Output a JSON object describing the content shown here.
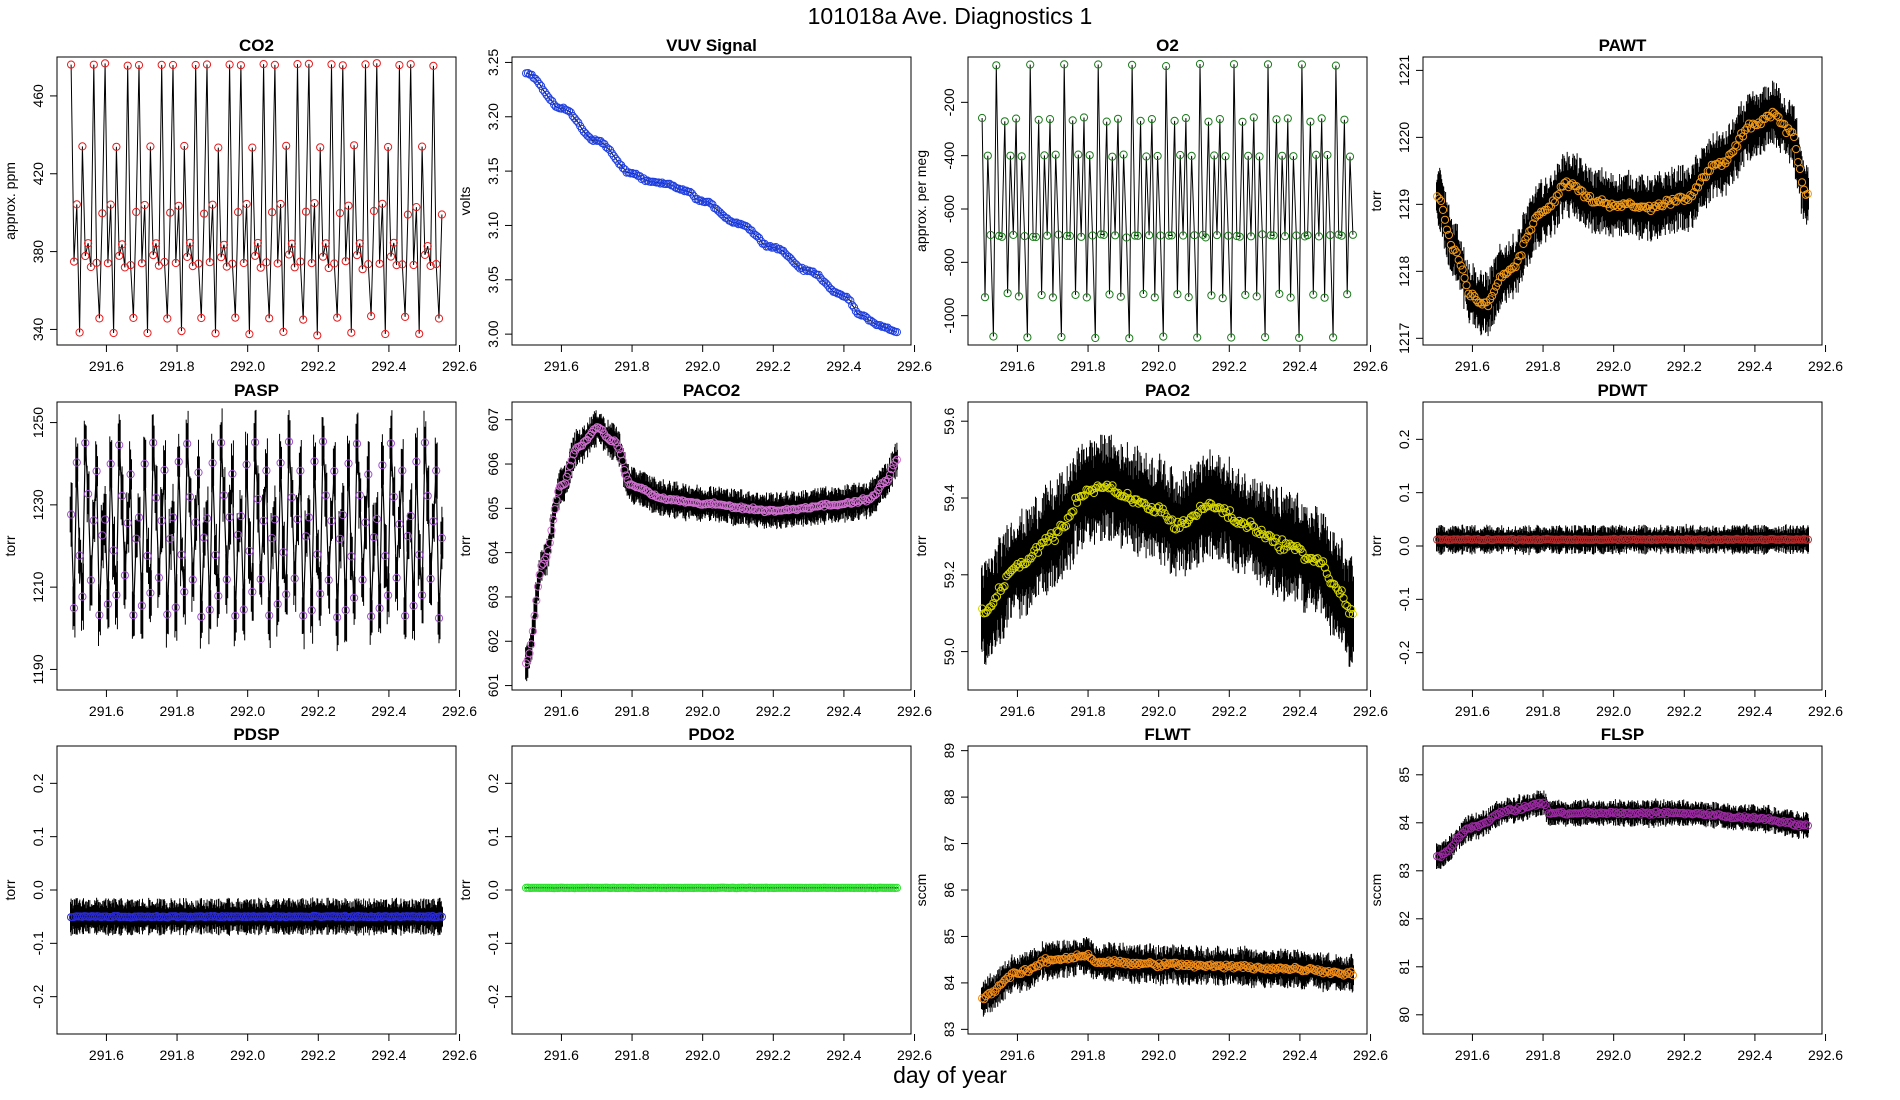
{
  "header": {
    "title": "101018a   Ave. Diagnostics 1"
  },
  "footer": {
    "xlabel": "day of year"
  },
  "chart_data": [
    {
      "type": "scatter",
      "title": "CO2",
      "ylabel": "approx. ppm",
      "color": "#e41a1c",
      "xlim": [
        291.46,
        292.59
      ],
      "ylim": [
        332,
        480
      ],
      "xticks": [
        291.6,
        291.8,
        292.0,
        292.2,
        292.4,
        292.6
      ],
      "xtick_labels": [
        "291.6",
        "291.8",
        "292.0",
        "292.2",
        "292.4",
        "292.6"
      ],
      "yticks": [
        340,
        380,
        420,
        460
      ],
      "ytick_labels": [
        "340",
        "380",
        "420",
        "460"
      ],
      "pattern": "cycle",
      "cycle_values": [
        476,
        374,
        404,
        338,
        434,
        378,
        384,
        372,
        476,
        374,
        346,
        400
      ],
      "pts_per_cycle": 12,
      "n_cycles": 11,
      "x_start": 291.5,
      "x_end": 292.55,
      "spread": 1.5,
      "marker": "o"
    },
    {
      "type": "scatter",
      "title": "VUV Signal",
      "ylabel": "volts",
      "color": "#1f3fe0",
      "xlim": [
        291.46,
        292.59
      ],
      "ylim": [
        2.99,
        3.255
      ],
      "xticks": [
        291.6,
        291.8,
        292.0,
        292.2,
        292.4,
        292.6
      ],
      "xtick_labels": [
        "291.6",
        "291.8",
        "292.0",
        "292.2",
        "292.4",
        "292.6"
      ],
      "yticks": [
        3.0,
        3.05,
        3.1,
        3.15,
        3.2,
        3.25
      ],
      "ytick_labels": [
        "3.00",
        "3.05",
        "3.10",
        "3.15",
        "3.20",
        "3.25"
      ],
      "pattern": "curve",
      "x": [
        291.5,
        291.6,
        291.7,
        291.8,
        291.85,
        291.9,
        291.95,
        292.0,
        292.1,
        292.2,
        292.3,
        292.4,
        292.45,
        292.5,
        292.55
      ],
      "y": [
        3.24,
        3.208,
        3.178,
        3.148,
        3.14,
        3.138,
        3.132,
        3.122,
        3.102,
        3.08,
        3.058,
        3.035,
        3.017,
        3.008,
        3.002
      ],
      "n_points": 200,
      "noise": 0.0015,
      "marker": "o"
    },
    {
      "type": "scatter",
      "title": "O2",
      "ylabel": "approx. per meg",
      "color": "#1a7a1a",
      "xlim": [
        291.46,
        292.59
      ],
      "ylim": [
        -1110,
        -30
      ],
      "xticks": [
        291.6,
        291.8,
        292.0,
        292.2,
        292.4,
        292.6
      ],
      "xtick_labels": [
        "291.6",
        "291.8",
        "292.0",
        "292.2",
        "292.4",
        "292.6"
      ],
      "yticks": [
        -1000,
        -800,
        -600,
        -400,
        -200
      ],
      "ytick_labels": [
        "-1000",
        "-800",
        "-600",
        "-400",
        "-200"
      ],
      "pattern": "cycle",
      "cycle_values": [
        -260,
        -930,
        -400,
        -700,
        -1080,
        -60,
        -700,
        -700,
        -270,
        -920,
        -400,
        -700
      ],
      "pts_per_cycle": 12,
      "n_cycles": 11,
      "x_start": 291.5,
      "x_end": 292.55,
      "spread": 8,
      "marker": "o"
    },
    {
      "type": "scatter",
      "title": "PAWT",
      "ylabel": "torr",
      "color": "#f29b18",
      "xlim": [
        291.46,
        292.59
      ],
      "ylim": [
        1216.9,
        1221.2
      ],
      "xticks": [
        291.6,
        291.8,
        292.0,
        292.2,
        292.4,
        292.6
      ],
      "xtick_labels": [
        "291.6",
        "291.8",
        "292.0",
        "292.2",
        "292.4",
        "292.6"
      ],
      "yticks": [
        1217,
        1218,
        1219,
        1220,
        1221
      ],
      "ytick_labels": [
        "1217",
        "1218",
        "1219",
        "1220",
        "1221"
      ],
      "pattern": "curve",
      "x": [
        291.5,
        291.55,
        291.6,
        291.63,
        291.7,
        291.8,
        291.87,
        291.95,
        292.0,
        292.1,
        292.2,
        292.3,
        292.4,
        292.45,
        292.5,
        292.55
      ],
      "y": [
        1219.1,
        1218.3,
        1217.6,
        1217.5,
        1218.0,
        1218.9,
        1219.3,
        1219.05,
        1219.0,
        1218.95,
        1219.1,
        1219.6,
        1220.2,
        1220.35,
        1220.1,
        1219.1
      ],
      "n_points": 190,
      "noise": 0.08,
      "band": 0.35,
      "marker": "o"
    },
    {
      "type": "scatter",
      "title": "PASP",
      "ylabel": "torr",
      "color": "#a050d0",
      "xlim": [
        291.46,
        292.59
      ],
      "ylim": [
        1185,
        1255
      ],
      "xticks": [
        291.6,
        291.8,
        292.0,
        292.2,
        292.4,
        292.6
      ],
      "xtick_labels": [
        "291.6",
        "291.8",
        "292.0",
        "292.2",
        "292.4",
        "292.6"
      ],
      "yticks": [
        1190,
        1210,
        1230,
        1250
      ],
      "ytick_labels": [
        "1190",
        "1210",
        "1230",
        "1250"
      ],
      "pattern": "cycle",
      "cycle_values": [
        1227,
        1205,
        1240,
        1218,
        1208,
        1245,
        1232,
        1212,
        1226,
        1238,
        1203,
        1222
      ],
      "pts_per_cycle": 12,
      "n_cycles": 11,
      "x_start": 291.5,
      "x_end": 292.55,
      "spread": 1.2,
      "band": 6,
      "marker": "o"
    },
    {
      "type": "scatter",
      "title": "PACO2",
      "ylabel": "torr",
      "color": "#d070d0",
      "xlim": [
        291.46,
        292.59
      ],
      "ylim": [
        600.9,
        607.4
      ],
      "xticks": [
        291.6,
        291.8,
        292.0,
        292.2,
        292.4,
        292.6
      ],
      "xtick_labels": [
        "291.6",
        "291.8",
        "292.0",
        "292.2",
        "292.4",
        "292.6"
      ],
      "yticks": [
        601,
        602,
        603,
        604,
        605,
        606,
        607
      ],
      "ytick_labels": [
        "601",
        "602",
        "603",
        "604",
        "605",
        "606",
        "607"
      ],
      "pattern": "curve",
      "x": [
        291.5,
        291.55,
        291.6,
        291.65,
        291.7,
        291.75,
        291.8,
        291.9,
        292.0,
        292.2,
        292.4,
        292.47,
        292.52,
        292.55
      ],
      "y": [
        601.5,
        603.8,
        605.5,
        606.4,
        606.8,
        606.5,
        605.5,
        605.2,
        605.1,
        604.95,
        605.1,
        605.2,
        605.6,
        606.1
      ],
      "n_points": 220,
      "noise": 0.05,
      "band": 0.3,
      "marker": "o"
    },
    {
      "type": "scatter",
      "title": "PAO2",
      "ylabel": "torr",
      "color": "#d8d800",
      "xlim": [
        291.46,
        292.59
      ],
      "ylim": [
        58.9,
        59.65
      ],
      "xticks": [
        291.6,
        291.8,
        292.0,
        292.2,
        292.4,
        292.6
      ],
      "xtick_labels": [
        "291.6",
        "291.8",
        "292.0",
        "292.2",
        "292.4",
        "292.6"
      ],
      "yticks": [
        59.0,
        59.2,
        59.4,
        59.6
      ],
      "ytick_labels": [
        "59.0",
        "59.2",
        "59.4",
        "59.6"
      ],
      "pattern": "curve",
      "x": [
        291.5,
        291.6,
        291.7,
        291.8,
        291.85,
        291.9,
        292.0,
        292.05,
        292.15,
        292.25,
        292.35,
        292.45,
        292.5,
        292.55
      ],
      "y": [
        59.1,
        59.22,
        59.3,
        59.42,
        59.43,
        59.4,
        59.37,
        59.33,
        59.38,
        59.33,
        59.28,
        59.24,
        59.17,
        59.1
      ],
      "n_points": 200,
      "noise": 0.02,
      "band": 0.1,
      "marker": "o"
    },
    {
      "type": "scatter",
      "title": "PDWT",
      "ylabel": "torr",
      "color": "#b02a2a",
      "xlim": [
        291.46,
        292.59
      ],
      "ylim": [
        -0.27,
        0.27
      ],
      "xticks": [
        291.6,
        291.8,
        292.0,
        292.2,
        292.4,
        292.6
      ],
      "xtick_labels": [
        "291.6",
        "291.8",
        "292.0",
        "292.2",
        "292.4",
        "292.6"
      ],
      "yticks": [
        -0.2,
        -0.1,
        0.0,
        0.1,
        0.2
      ],
      "ytick_labels": [
        "-0.2",
        "-0.1",
        "0.0",
        "0.1",
        "0.2"
      ],
      "pattern": "flat",
      "level": 0.012,
      "n_points": 200,
      "x_start": 291.5,
      "x_end": 292.55,
      "noise": 0.002,
      "band": 0.02,
      "marker": "o"
    },
    {
      "type": "scatter",
      "title": "PDSP",
      "ylabel": "torr",
      "color": "#2a2ad8",
      "xlim": [
        291.46,
        292.59
      ],
      "ylim": [
        -0.27,
        0.27
      ],
      "xticks": [
        291.6,
        291.8,
        292.0,
        292.2,
        292.4,
        292.6
      ],
      "xtick_labels": [
        "291.6",
        "291.8",
        "292.0",
        "292.2",
        "292.4",
        "292.6"
      ],
      "yticks": [
        -0.2,
        -0.1,
        0.0,
        0.1,
        0.2
      ],
      "ytick_labels": [
        "-0.2",
        "-0.1",
        "0.0",
        "0.1",
        "0.2"
      ],
      "pattern": "flat",
      "level": -0.05,
      "n_points": 200,
      "x_start": 291.5,
      "x_end": 292.55,
      "noise": 0.002,
      "band": 0.025,
      "marker": "o"
    },
    {
      "type": "scatter",
      "title": "PDO2",
      "ylabel": "torr",
      "color": "#30e030",
      "xlim": [
        291.46,
        292.59
      ],
      "ylim": [
        -0.27,
        0.27
      ],
      "xticks": [
        291.6,
        291.8,
        292.0,
        292.2,
        292.4,
        292.6
      ],
      "xtick_labels": [
        "291.6",
        "291.8",
        "292.0",
        "292.2",
        "292.4",
        "292.6"
      ],
      "yticks": [
        -0.2,
        -0.1,
        0.0,
        0.1,
        0.2
      ],
      "ytick_labels": [
        "-0.2",
        "-0.1",
        "0.0",
        "0.1",
        "0.2"
      ],
      "pattern": "flat",
      "level": 0.004,
      "n_points": 200,
      "x_start": 291.5,
      "x_end": 292.55,
      "noise": 0.0005,
      "band": 0.001,
      "marker": "o"
    },
    {
      "type": "scatter",
      "title": "FLWT",
      "ylabel": "sccm",
      "color": "#f08c18",
      "xlim": [
        291.46,
        292.59
      ],
      "ylim": [
        82.9,
        89.1
      ],
      "xticks": [
        291.6,
        291.8,
        292.0,
        292.2,
        292.4,
        292.6
      ],
      "xtick_labels": [
        "291.6",
        "291.8",
        "292.0",
        "292.2",
        "292.4",
        "292.6"
      ],
      "yticks": [
        83,
        84,
        85,
        86,
        87,
        88,
        89
      ],
      "ytick_labels": [
        "83",
        "84",
        "85",
        "86",
        "87",
        "88",
        "89"
      ],
      "pattern": "curve",
      "x": [
        291.5,
        291.6,
        291.7,
        291.8,
        291.82,
        292.0,
        292.2,
        292.4,
        292.55
      ],
      "y": [
        83.7,
        84.2,
        84.5,
        84.6,
        84.45,
        84.4,
        84.35,
        84.3,
        84.2
      ],
      "n_points": 200,
      "noise": 0.08,
      "band": 0.3,
      "marker": "o"
    },
    {
      "type": "scatter",
      "title": "FLSP",
      "ylabel": "sccm",
      "color": "#9a2aa0",
      "xlim": [
        291.46,
        292.59
      ],
      "ylim": [
        79.6,
        85.6
      ],
      "xticks": [
        291.6,
        291.8,
        292.0,
        292.2,
        292.4,
        292.6
      ],
      "xtick_labels": [
        "291.6",
        "291.8",
        "292.0",
        "292.2",
        "292.4",
        "292.6"
      ],
      "yticks": [
        80,
        81,
        82,
        83,
        84,
        85
      ],
      "ytick_labels": [
        "80",
        "81",
        "82",
        "83",
        "84",
        "85"
      ],
      "pattern": "curve",
      "x": [
        291.5,
        291.6,
        291.7,
        291.8,
        291.82,
        292.0,
        292.2,
        292.4,
        292.55
      ],
      "y": [
        83.3,
        83.9,
        84.25,
        84.4,
        84.2,
        84.2,
        84.2,
        84.1,
        83.95
      ],
      "n_points": 200,
      "noise": 0.05,
      "band": 0.2,
      "marker": "o"
    }
  ]
}
